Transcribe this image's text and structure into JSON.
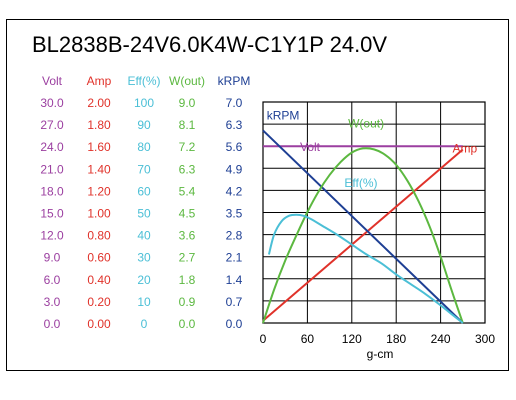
{
  "chart_data": {
    "type": "line",
    "title": "BL2838B-24V6.0K4W-C1Y1P   24.0V",
    "xlabel": "g-cm",
    "x_ticks": [
      0,
      60,
      120,
      180,
      240,
      300
    ],
    "xlim": [
      0,
      300
    ],
    "grid": true,
    "colors": {
      "volt": "#9b3fa0",
      "amp": "#e0322a",
      "eff": "#4bbfd6",
      "wout": "#5cb840",
      "krpm": "#1e3f94"
    },
    "y_axes": [
      {
        "key": "volt",
        "header": "Volt",
        "ticks": [
          "30.0",
          "27.0",
          "24.0",
          "21.0",
          "18.0",
          "15.0",
          "12.0",
          "9.0",
          "6.0",
          "3.0",
          "0.0"
        ],
        "max": 30.0
      },
      {
        "key": "amp",
        "header": "Amp",
        "ticks": [
          "2.00",
          "1.80",
          "1.60",
          "1.40",
          "1.20",
          "1.00",
          "0.80",
          "0.60",
          "0.40",
          "0.20",
          "0.00"
        ],
        "max": 2.0
      },
      {
        "key": "eff",
        "header": "Eff(%)",
        "ticks": [
          "100",
          "90",
          "80",
          "70",
          "60",
          "50",
          "40",
          "30",
          "20",
          "10",
          "0"
        ],
        "max": 100
      },
      {
        "key": "wout",
        "header": "W(out)",
        "ticks": [
          "9.0",
          "8.1",
          "7.2",
          "6.3",
          "5.4",
          "4.5",
          "3.6",
          "2.7",
          "1.8",
          "0.9",
          "0.0"
        ],
        "max": 9.0
      },
      {
        "key": "krpm",
        "header": "kRPM",
        "ticks": [
          "7.0",
          "6.3",
          "5.6",
          "4.9",
          "4.2",
          "3.5",
          "2.8",
          "2.1",
          "1.4",
          "0.7",
          "0.0"
        ],
        "max": 7.0
      }
    ],
    "series": [
      {
        "key": "volt",
        "name": "Volt",
        "x": [
          0,
          270
        ],
        "y": [
          24.0,
          24.0
        ]
      },
      {
        "key": "amp",
        "name": "Amp",
        "x": [
          0,
          270
        ],
        "y": [
          0.02,
          1.57
        ]
      },
      {
        "key": "krpm",
        "name": "kRPM",
        "x": [
          0,
          270
        ],
        "y": [
          6.1,
          0.0
        ]
      },
      {
        "key": "wout",
        "name": "W(out)",
        "x": [
          0,
          15,
          30,
          45,
          60,
          75,
          90,
          105,
          120,
          135,
          150,
          165,
          180,
          195,
          210,
          225,
          240,
          255,
          270
        ],
        "y": [
          0.0,
          1.36,
          2.54,
          3.56,
          4.52,
          5.35,
          6.03,
          6.56,
          6.94,
          7.11,
          7.07,
          6.85,
          6.44,
          5.8,
          4.97,
          3.94,
          2.7,
          1.32,
          0.0
        ]
      },
      {
        "key": "eff",
        "name": "Eff(%)",
        "x": [
          8,
          15,
          25,
          35,
          45,
          55,
          65,
          80,
          100,
          120,
          140,
          160,
          180,
          200,
          220,
          240,
          255,
          270
        ],
        "y": [
          31,
          40,
          46,
          48.5,
          49,
          48.5,
          47,
          44,
          40,
          35.5,
          31,
          27,
          22,
          17.5,
          13,
          8,
          4,
          0
        ]
      }
    ],
    "series_labels": [
      {
        "key": "krpm",
        "text": "kRPM",
        "x": 5,
        "y_key": "krpm",
        "y": 6.45
      },
      {
        "key": "wout",
        "text": "W(out)",
        "x": 115,
        "y_key": "krpm",
        "y": 6.2
      },
      {
        "key": "volt",
        "text": "Volt",
        "x": 50,
        "y_key": "krpm",
        "y": 5.45
      },
      {
        "key": "amp",
        "text": "Amp",
        "x": 256,
        "y_key": "krpm",
        "y": 5.4
      },
      {
        "key": "eff",
        "text": "Eff(%)",
        "x": 110,
        "y_key": "krpm",
        "y": 4.3
      }
    ]
  }
}
